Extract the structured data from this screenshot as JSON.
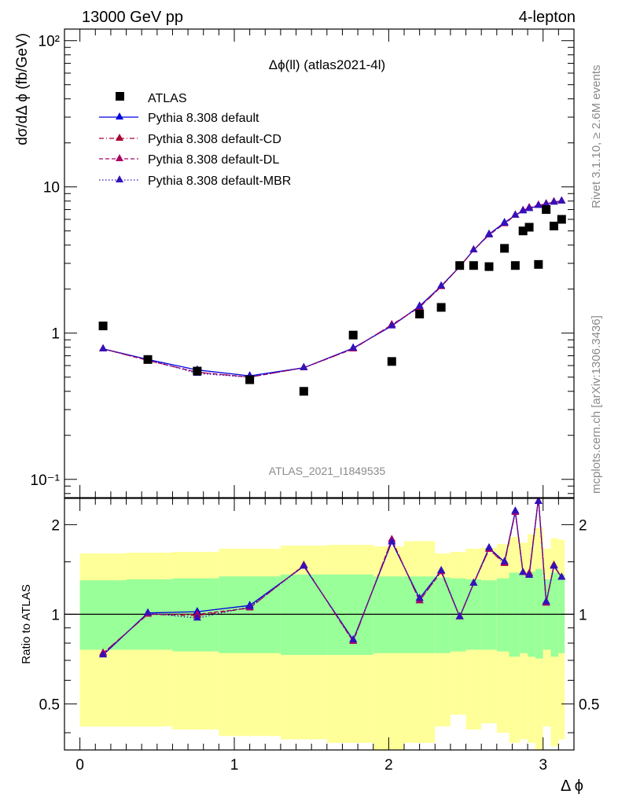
{
  "header": {
    "energy_label": "13000 GeV pp",
    "process_label": "4-lepton"
  },
  "side_text": {
    "rivet": "Rivet 3.1.10, ≥ 2.6M events",
    "mcplots": "mcplots.cern.ch [arXiv:1306.3436]"
  },
  "chart_data": [
    {
      "type": "scatter",
      "title": "Δϕ(ll) (atlas2021-4l)",
      "watermark": "ATLAS_2021_I1849535",
      "xlabel": "Δ ϕ",
      "ylabel": "dσ/dΔ ϕ (fb/GeV)",
      "xlim": [
        -0.1,
        3.2
      ],
      "ylim": [
        0.075,
        120
      ],
      "yscale": "log",
      "x_ticks": [
        "0",
        "1",
        "2",
        "3"
      ],
      "y_ticks": [
        "10⁻¹",
        "1",
        "10",
        "10²"
      ],
      "legend_position": "top-left",
      "x": [
        0.15,
        0.44,
        0.76,
        1.1,
        1.45,
        1.77,
        2.02,
        2.2,
        2.34,
        2.46,
        2.55,
        2.65,
        2.75,
        2.82,
        2.87,
        2.91,
        2.97,
        3.02,
        3.07,
        3.12
      ],
      "series": [
        {
          "name": "ATLAS",
          "marker": "square",
          "color": "#000000",
          "values": [
            1.12,
            0.66,
            0.55,
            0.48,
            0.4,
            0.97,
            0.64,
            1.35,
            1.5,
            2.9,
            2.9,
            2.85,
            3.8,
            2.9,
            5.0,
            5.3,
            2.95,
            7.0,
            5.4,
            6.0
          ]
        },
        {
          "name": "Pythia 8.308 default",
          "marker": "triangle",
          "color": "#0000dd",
          "line": "solid",
          "values": [
            0.78,
            0.66,
            0.56,
            0.51,
            0.58,
            0.79,
            1.12,
            1.53,
            2.1,
            2.85,
            3.7,
            4.75,
            5.7,
            6.4,
            6.85,
            7.1,
            7.45,
            7.65,
            7.85,
            8.0
          ]
        },
        {
          "name": "Pythia 8.308 default-CD",
          "marker": "triangle",
          "color": "#aa0033",
          "line": "dashdot",
          "values": [
            0.78,
            0.65,
            0.54,
            0.5,
            0.58,
            0.78,
            1.14,
            1.5,
            2.08,
            2.85,
            3.7,
            4.7,
            5.6,
            6.4,
            6.9,
            7.2,
            7.5,
            7.65,
            7.9,
            8.0
          ]
        },
        {
          "name": "Pythia 8.308 default-DL",
          "marker": "triangle",
          "color": "#aa0066",
          "line": "dashed",
          "values": [
            0.78,
            0.65,
            0.54,
            0.5,
            0.58,
            0.78,
            1.14,
            1.51,
            2.08,
            2.85,
            3.7,
            4.7,
            5.6,
            6.4,
            6.9,
            7.2,
            7.5,
            7.65,
            7.9,
            8.0
          ]
        },
        {
          "name": "Pythia 8.308 default-MBR",
          "marker": "triangle",
          "color": "#3311bb",
          "line": "dotted",
          "values": [
            0.78,
            0.66,
            0.53,
            0.5,
            0.58,
            0.79,
            1.12,
            1.52,
            2.1,
            2.85,
            3.7,
            4.7,
            5.65,
            6.4,
            6.85,
            7.1,
            7.45,
            7.6,
            7.85,
            8.0
          ]
        }
      ]
    },
    {
      "type": "line",
      "ylabel": "Ratio to ATLAS",
      "xlabel": "Δ ϕ",
      "xlim": [
        -0.1,
        3.2
      ],
      "ylim": [
        0.35,
        2.45
      ],
      "yscale": "log",
      "y_ticks": [
        "0.5",
        "1",
        "2"
      ],
      "reference_line": 1,
      "bands": {
        "edges": [
          0,
          0.3,
          0.6,
          0.9,
          1.3,
          1.6,
          1.9,
          2.1,
          2.3,
          2.4,
          2.5,
          2.6,
          2.7,
          2.78,
          2.85,
          2.9,
          2.95,
          3.0,
          3.05,
          3.1,
          3.14
        ],
        "inner_color": "#99ff99",
        "outer_color": "#ffff99",
        "inner_lo": [
          0.76,
          0.76,
          0.75,
          0.74,
          0.73,
          0.73,
          0.74,
          0.74,
          0.74,
          0.75,
          0.76,
          0.76,
          0.75,
          0.72,
          0.74,
          0.72,
          0.71,
          0.76,
          0.72,
          0.74
        ],
        "inner_hi": [
          1.3,
          1.31,
          1.32,
          1.34,
          1.36,
          1.36,
          1.34,
          1.34,
          1.33,
          1.32,
          1.31,
          1.3,
          1.32,
          1.38,
          1.35,
          1.39,
          1.42,
          1.31,
          1.38,
          1.36
        ],
        "outer_lo": [
          0.42,
          0.42,
          0.41,
          0.39,
          0.38,
          0.37,
          0.35,
          0.37,
          0.42,
          0.46,
          0.41,
          0.43,
          0.4,
          0.37,
          0.38,
          0.37,
          0.35,
          0.42,
          0.36,
          0.38
        ],
        "outer_hi": [
          1.6,
          1.61,
          1.62,
          1.66,
          1.7,
          1.71,
          1.69,
          1.76,
          1.6,
          1.62,
          1.66,
          1.67,
          1.72,
          1.82,
          1.74,
          1.86,
          1.95,
          1.66,
          1.8,
          1.78
        ]
      },
      "x": [
        0.15,
        0.44,
        0.76,
        1.1,
        1.45,
        1.77,
        2.02,
        2.2,
        2.34,
        2.46,
        2.55,
        2.65,
        2.75,
        2.82,
        2.87,
        2.91,
        2.97,
        3.02,
        3.07,
        3.12
      ],
      "series": [
        {
          "name": "Pythia 8.308 default",
          "color": "#0000dd",
          "line": "solid",
          "values": [
            0.73,
            1.01,
            1.02,
            1.07,
            1.45,
            0.82,
            1.75,
            1.13,
            1.4,
            0.98,
            1.27,
            1.67,
            1.5,
            2.22,
            1.38,
            1.35,
            2.46,
            1.1,
            1.45,
            1.33
          ]
        },
        {
          "name": "Pythia 8.308 default-CD",
          "color": "#aa0033",
          "line": "dashdot",
          "values": [
            0.74,
            1.0,
            0.99,
            1.05,
            1.46,
            0.81,
            1.78,
            1.11,
            1.39,
            0.98,
            1.27,
            1.65,
            1.48,
            2.2,
            1.38,
            1.37,
            2.45,
            1.09,
            1.46,
            1.33
          ]
        },
        {
          "name": "Pythia 8.308 default-DL",
          "color": "#aa0066",
          "line": "dashed",
          "values": [
            0.74,
            1.0,
            1.0,
            1.05,
            1.46,
            0.81,
            1.78,
            1.11,
            1.39,
            0.98,
            1.27,
            1.65,
            1.49,
            2.2,
            1.38,
            1.37,
            2.45,
            1.09,
            1.46,
            1.33
          ]
        },
        {
          "name": "Pythia 8.308 default-MBR",
          "color": "#3311bb",
          "line": "dotted",
          "values": [
            0.73,
            1.01,
            0.97,
            1.06,
            1.45,
            0.82,
            1.75,
            1.13,
            1.4,
            0.98,
            1.27,
            1.67,
            1.5,
            2.22,
            1.38,
            1.35,
            2.46,
            1.1,
            1.45,
            1.33
          ]
        }
      ]
    }
  ]
}
